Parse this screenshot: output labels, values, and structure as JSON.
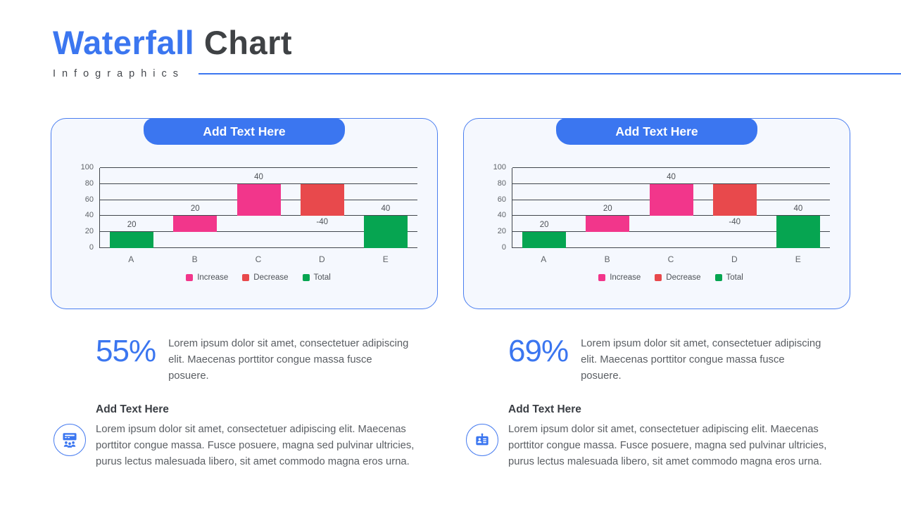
{
  "header": {
    "title_accent": "Waterfall",
    "title_rest": "Chart",
    "subtitle": "Infographics"
  },
  "colors": {
    "accent": "#3b76f0",
    "increase": "#f2368b",
    "decrease": "#e8494c",
    "total": "#06a551"
  },
  "cards": [
    {
      "pill_label": "Add Text Here",
      "stat": {
        "value": "55%",
        "description": "Lorem ipsum dolor sit amet, consectetuer adipiscing elit. Maecenas porttitor congue massa fusce posuere."
      },
      "section": {
        "heading": "Add Text Here",
        "icon": "presentation-audience-icon",
        "body": "Lorem ipsum dolor sit amet, consectetuer adipiscing elit. Maecenas porttitor congue massa. Fusce posuere, magna sed pulvinar ultricies, purus lectus malesuada libero, sit amet commodo magna eros urna."
      }
    },
    {
      "pill_label": "Add Text Here",
      "stat": {
        "value": "69%",
        "description": "Lorem ipsum dolor sit amet, consectetuer adipiscing elit. Maecenas porttitor congue massa fusce posuere."
      },
      "section": {
        "heading": "Add Text Here",
        "icon": "id-card-icon",
        "body": "Lorem ipsum dolor sit amet, consectetuer adipiscing elit. Maecenas porttitor congue massa. Fusce posuere, magna sed pulvinar ultricies, purus lectus malesuada libero, sit amet commodo magna eros urna."
      }
    }
  ],
  "chart_data": [
    {
      "type": "bar",
      "subtype": "waterfall",
      "title": "Add Text Here",
      "categories": [
        "A",
        "B",
        "C",
        "D",
        "E"
      ],
      "bars": [
        {
          "category": "A",
          "series": "Total",
          "start": 0,
          "end": 20,
          "label": "20",
          "label_position": "above"
        },
        {
          "category": "B",
          "series": "Increase",
          "start": 20,
          "end": 40,
          "label": "20",
          "label_position": "above"
        },
        {
          "category": "C",
          "series": "Increase",
          "start": 40,
          "end": 80,
          "label": "40",
          "label_position": "above"
        },
        {
          "category": "D",
          "series": "Decrease",
          "start": 80,
          "end": 40,
          "label": "-40",
          "label_position": "below"
        },
        {
          "category": "E",
          "series": "Total",
          "start": 0,
          "end": 40,
          "label": "40",
          "label_position": "above"
        }
      ],
      "y_ticks": [
        0,
        20,
        40,
        60,
        80,
        100
      ],
      "ylim": [
        0,
        100
      ],
      "grid": true,
      "legend": [
        "Increase",
        "Decrease",
        "Total"
      ],
      "legend_position": "bottom"
    },
    {
      "type": "bar",
      "subtype": "waterfall",
      "title": "Add Text Here",
      "categories": [
        "A",
        "B",
        "C",
        "D",
        "E"
      ],
      "bars": [
        {
          "category": "A",
          "series": "Total",
          "start": 0,
          "end": 20,
          "label": "20",
          "label_position": "above"
        },
        {
          "category": "B",
          "series": "Increase",
          "start": 20,
          "end": 40,
          "label": "20",
          "label_position": "above"
        },
        {
          "category": "C",
          "series": "Increase",
          "start": 40,
          "end": 80,
          "label": "40",
          "label_position": "above"
        },
        {
          "category": "D",
          "series": "Decrease",
          "start": 80,
          "end": 40,
          "label": "-40",
          "label_position": "below"
        },
        {
          "category": "E",
          "series": "Total",
          "start": 0,
          "end": 40,
          "label": "40",
          "label_position": "above"
        }
      ],
      "y_ticks": [
        0,
        20,
        40,
        60,
        80,
        100
      ],
      "ylim": [
        0,
        100
      ],
      "grid": true,
      "legend": [
        "Increase",
        "Decrease",
        "Total"
      ],
      "legend_position": "bottom"
    }
  ]
}
